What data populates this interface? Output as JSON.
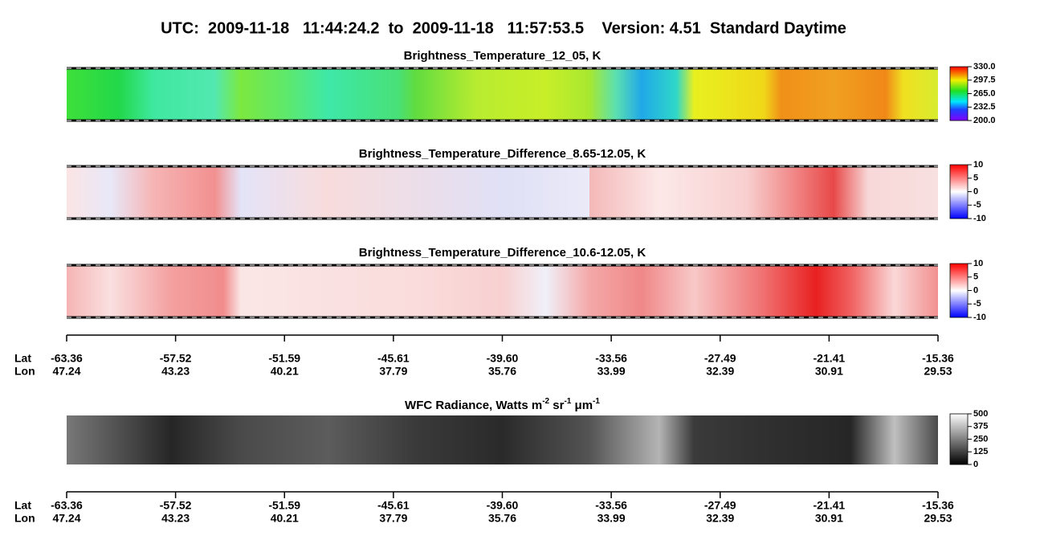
{
  "title": "UTC:  2009-11-18   11:44:24.2  to  2009-11-18   11:57:53.5    Version: 4.51  Standard Daytime",
  "chart_data": [
    {
      "type": "image",
      "title": "Brightness_Temperature_12_05, K",
      "colormap": "rainbow",
      "clim": [
        200,
        330
      ],
      "cticks": [
        {
          "value": 200,
          "label": "200.0"
        },
        {
          "value": 232.5,
          "label": "232.5"
        },
        {
          "value": 265,
          "label": "265.0"
        },
        {
          "value": 297.5,
          "label": "297.5"
        },
        {
          "value": 330,
          "label": "330.0"
        }
      ]
    },
    {
      "type": "image",
      "title": "Brightness_Temperature_Difference_8.65-12.05, K",
      "colormap": "bwr",
      "clim": [
        -10,
        10
      ],
      "cticks": [
        -10,
        -5,
        0,
        5,
        10
      ]
    },
    {
      "type": "image",
      "title": "Brightness_Temperature_Difference_10.6-12.05, K",
      "colormap": "bwr2",
      "clim": [
        -10,
        10
      ],
      "cticks": [
        -10,
        -5,
        0,
        5,
        10
      ]
    },
    {
      "type": "image",
      "title_parts": [
        "WFC Radiance, Watts m",
        "-2",
        " sr",
        "-1",
        " μm",
        "-1"
      ],
      "colormap": "gray",
      "clim": [
        0,
        500
      ],
      "cticks": [
        0,
        125,
        250,
        375,
        500
      ]
    }
  ],
  "axes": [
    {
      "lat_name": "Lat",
      "lon_name": "Lon",
      "lat": [
        -63.36,
        -57.52,
        -51.59,
        -45.61,
        {
          "value": -39.6,
          "label": "-39.60"
        },
        -33.56,
        -27.49,
        -21.41,
        -15.36
      ],
      "lon": [
        47.24,
        43.23,
        40.21,
        37.79,
        35.76,
        33.99,
        32.39,
        30.91,
        29.53
      ]
    },
    {
      "lat_name": "Lat",
      "lon_name": "Lon",
      "lat": [
        -63.36,
        -57.52,
        -51.59,
        -45.61,
        {
          "value": -39.6,
          "label": "-39.60"
        },
        -33.56,
        -27.49,
        -21.41,
        -15.36
      ],
      "lon": [
        47.24,
        43.23,
        40.21,
        37.79,
        35.76,
        33.99,
        32.39,
        30.91,
        29.53
      ]
    }
  ]
}
